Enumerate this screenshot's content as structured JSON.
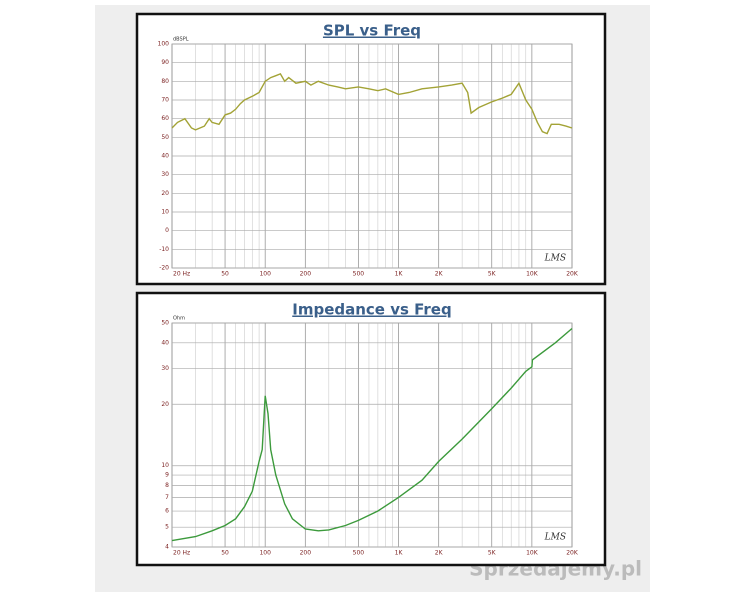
{
  "chart_data": [
    {
      "type": "line",
      "title": "SPL vs Freq",
      "ylabel": "dBSPL",
      "annotation": "LMS",
      "color": "#a3a336",
      "xlog": true,
      "xlim": [
        20,
        20000
      ],
      "xticks": [
        {
          "value": 20,
          "label": "20 Hz"
        },
        50,
        100,
        200,
        500,
        {
          "value": 1000,
          "label": "1K"
        },
        {
          "value": 2000,
          "label": "2K"
        },
        {
          "value": 5000,
          "label": "5K"
        },
        {
          "value": 10000,
          "label": "10K"
        },
        {
          "value": 20000,
          "label": "20K"
        }
      ],
      "xminor": [
        30,
        40,
        60,
        70,
        80,
        90,
        300,
        400,
        600,
        700,
        800,
        900,
        3000,
        4000,
        6000,
        7000,
        8000,
        9000
      ],
      "ylim": [
        -20,
        100
      ],
      "yticks": [
        -20,
        -10,
        0,
        10,
        20,
        30,
        40,
        50,
        60,
        70,
        80,
        90,
        100
      ],
      "x": [
        20,
        22,
        25,
        28,
        30,
        35,
        38,
        40,
        45,
        50,
        55,
        60,
        65,
        70,
        80,
        90,
        100,
        110,
        120,
        130,
        140,
        150,
        170,
        200,
        220,
        250,
        300,
        350,
        400,
        500,
        600,
        700,
        800,
        1000,
        1200,
        1500,
        2000,
        2500,
        3000,
        3300,
        3500,
        4000,
        5000,
        6000,
        7000,
        8000,
        9000,
        10000,
        11000,
        12000,
        13000,
        14000,
        16000,
        18000,
        20000
      ],
      "values": [
        55,
        58,
        60,
        55,
        54,
        56,
        60,
        58,
        57,
        62,
        63,
        65,
        68,
        70,
        72,
        74,
        80,
        82,
        83,
        84,
        80,
        82,
        79,
        80,
        78,
        80,
        78,
        77,
        76,
        77,
        76,
        75,
        76,
        73,
        74,
        76,
        77,
        78,
        79,
        74,
        63,
        66,
        69,
        71,
        73,
        79,
        70,
        65,
        58,
        53,
        52,
        57,
        57,
        56,
        55
      ]
    },
    {
      "type": "line",
      "title": "Impedance vs Freq",
      "ylabel": "Ohm",
      "annotation": "LMS",
      "color": "#3c9a3c",
      "xlog": true,
      "ylog": true,
      "xlim": [
        20,
        20000
      ],
      "xticks": [
        {
          "value": 20,
          "label": "20 Hz"
        },
        50,
        100,
        200,
        500,
        {
          "value": 1000,
          "label": "1K"
        },
        {
          "value": 2000,
          "label": "2K"
        },
        {
          "value": 5000,
          "label": "5K"
        },
        {
          "value": 10000,
          "label": "10K"
        },
        {
          "value": 20000,
          "label": "20K"
        }
      ],
      "xminor": [
        30,
        40,
        60,
        70,
        80,
        90,
        300,
        400,
        600,
        700,
        800,
        900,
        3000,
        4000,
        6000,
        7000,
        8000,
        9000
      ],
      "ylim": [
        4,
        50
      ],
      "yticks": [
        4,
        5,
        6,
        7,
        8,
        9,
        10,
        20,
        30,
        40,
        50
      ],
      "x": [
        20,
        30,
        40,
        50,
        60,
        70,
        80,
        90,
        95,
        100,
        105,
        110,
        120,
        140,
        160,
        200,
        250,
        300,
        400,
        500,
        700,
        1000,
        1500,
        2000,
        3000,
        5000,
        7000,
        9000,
        10000,
        10100,
        15000,
        20000
      ],
      "values": [
        4.3,
        4.5,
        4.8,
        5.1,
        5.5,
        6.3,
        7.5,
        10.5,
        12,
        22,
        18,
        12,
        9,
        6.5,
        5.5,
        4.9,
        4.8,
        4.85,
        5.1,
        5.4,
        6,
        7,
        8.5,
        10.5,
        13.5,
        19,
        24,
        29,
        30.5,
        33,
        40,
        47
      ]
    }
  ],
  "watermark": "Sprzedajemy.pl"
}
